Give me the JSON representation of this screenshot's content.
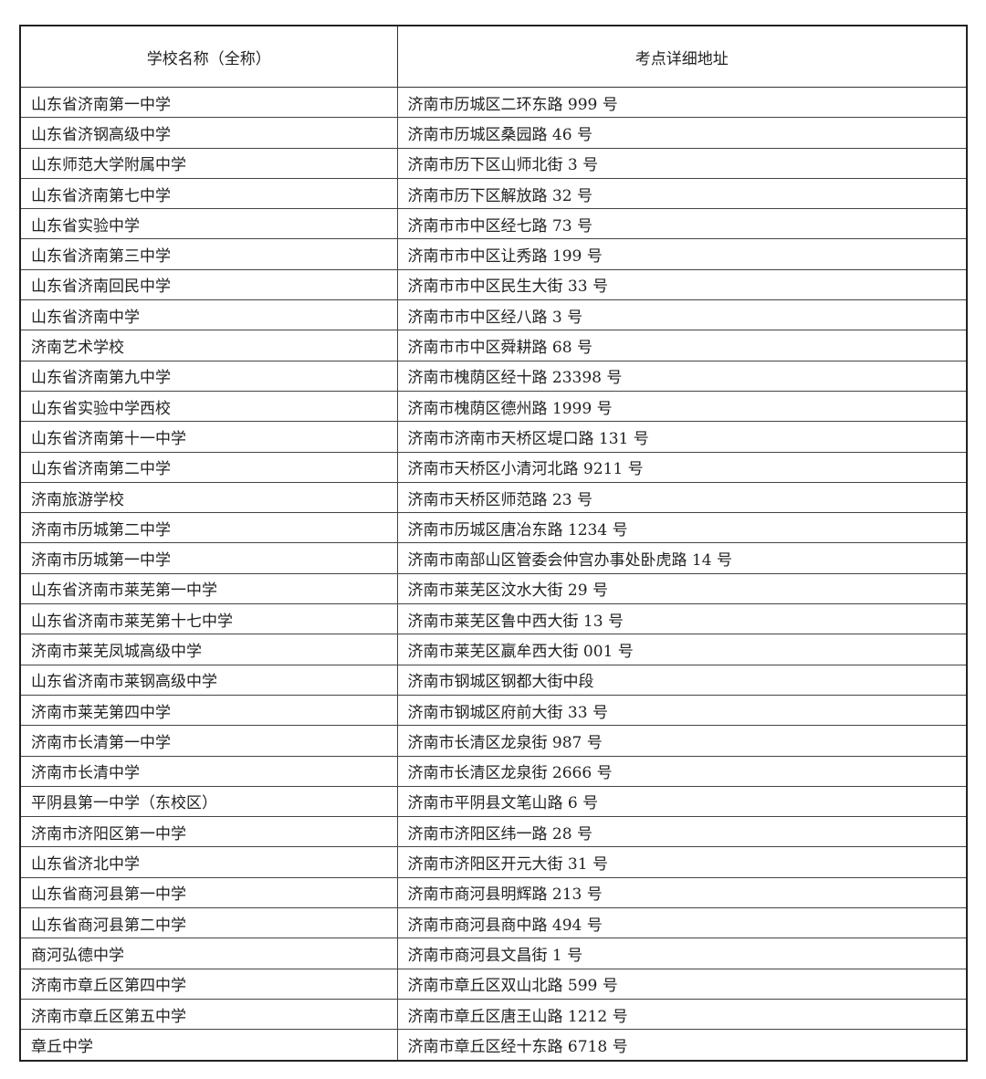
{
  "table": {
    "headers": [
      "学校名称（全称）",
      "考点详细地址"
    ],
    "rows": [
      [
        "山东省济南第一中学",
        "济南市历城区二环东路 999 号"
      ],
      [
        "山东省济钢高级中学",
        "济南市历城区桑园路 46 号"
      ],
      [
        "山东师范大学附属中学",
        "济南市历下区山师北街 3 号"
      ],
      [
        "山东省济南第七中学",
        "济南市历下区解放路 32 号"
      ],
      [
        "山东省实验中学",
        "济南市市中区经七路 73 号"
      ],
      [
        "山东省济南第三中学",
        "济南市市中区让秀路 199 号"
      ],
      [
        "山东省济南回民中学",
        "济南市市中区民生大街 33 号"
      ],
      [
        "山东省济南中学",
        "济南市市中区经八路 3 号"
      ],
      [
        "济南艺术学校",
        "济南市市中区舜耕路 68 号"
      ],
      [
        "山东省济南第九中学",
        "济南市槐荫区经十路 23398 号"
      ],
      [
        "山东省实验中学西校",
        "济南市槐荫区德州路 1999 号"
      ],
      [
        "山东省济南第十一中学",
        "济南市济南市天桥区堤口路 131 号"
      ],
      [
        "山东省济南第二中学",
        "济南市天桥区小清河北路 9211 号"
      ],
      [
        "济南旅游学校",
        "济南市天桥区师范路 23 号"
      ],
      [
        "济南市历城第二中学",
        "济南市历城区唐冶东路 1234 号"
      ],
      [
        "济南市历城第一中学",
        "济南市南部山区管委会仲宫办事处卧虎路 14 号"
      ],
      [
        "山东省济南市莱芜第一中学",
        "济南市莱芜区汶水大街 29 号"
      ],
      [
        "山东省济南市莱芜第十七中学",
        "济南市莱芜区鲁中西大街 13 号"
      ],
      [
        "济南市莱芜凤城高级中学",
        "济南市莱芜区嬴牟西大街 001 号"
      ],
      [
        "山东省济南市莱钢高级中学",
        "济南市钢城区钢都大街中段"
      ],
      [
        "济南市莱芜第四中学",
        "济南市钢城区府前大街 33 号"
      ],
      [
        "济南市长清第一中学",
        "济南市长清区龙泉街 987 号"
      ],
      [
        "济南市长清中学",
        "济南市长清区龙泉街 2666 号"
      ],
      [
        "平阴县第一中学（东校区）",
        "济南市平阴县文笔山路 6 号"
      ],
      [
        "济南市济阳区第一中学",
        "济南市济阳区纬一路 28 号"
      ],
      [
        "山东省济北中学",
        "济南市济阳区开元大街 31 号"
      ],
      [
        "山东省商河县第一中学",
        "济南市商河县明辉路 213 号"
      ],
      [
        "山东省商河县第二中学",
        "济南市商河县商中路 494 号"
      ],
      [
        "商河弘德中学",
        "济南市商河县文昌街 1 号"
      ],
      [
        "济南市章丘区第四中学",
        "济南市章丘区双山北路 599 号"
      ],
      [
        "济南市章丘区第五中学",
        "济南市章丘区唐王山路 1212 号"
      ],
      [
        "章丘中学",
        "济南市章丘区经十东路 6718 号"
      ]
    ]
  }
}
